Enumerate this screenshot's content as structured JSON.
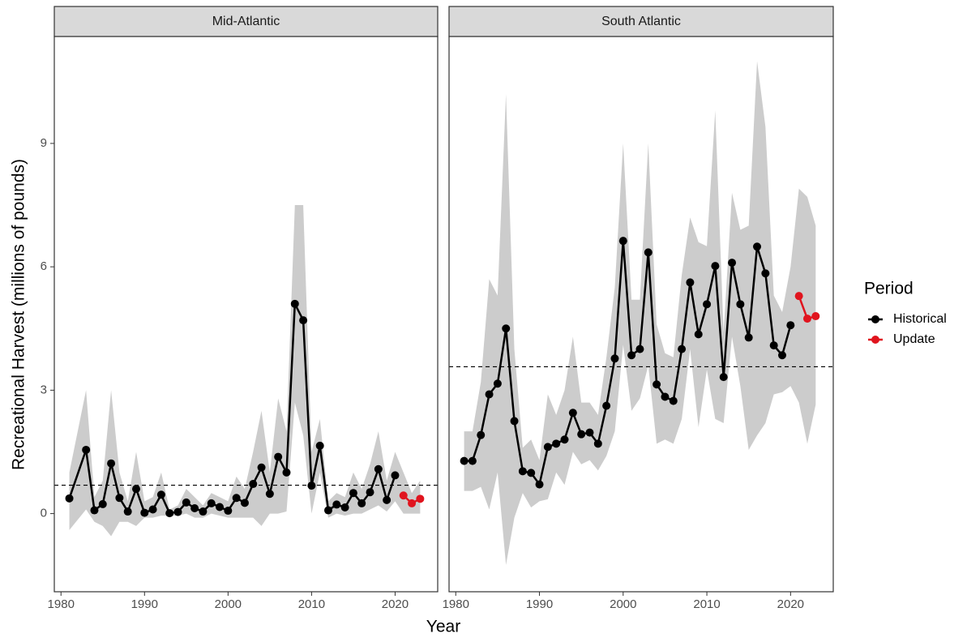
{
  "chart_data": {
    "type": "facet",
    "x_label": "Year",
    "y_label": "Recreational Harvest (millions of pounds)",
    "legend_title": "Period",
    "panels": [
      {
        "type": "line",
        "title": "Mid-Atlantic",
        "x": [
          1981,
          1983,
          1984,
          1985,
          1986,
          1987,
          1988,
          1989,
          1990,
          1991,
          1992,
          1993,
          1994,
          1995,
          1996,
          1997,
          1998,
          1999,
          2000,
          2001,
          2002,
          2003,
          2004,
          2005,
          2006,
          2007,
          2008,
          2009,
          2010,
          2011,
          2012,
          2013,
          2014,
          2015,
          2016,
          2017,
          2018,
          2019,
          2020,
          2021,
          2022,
          2023
        ],
        "series": [
          {
            "name": "Historical",
            "color": "#000000",
            "values": [
              0.37,
              1.55,
              0.08,
              0.23,
              1.22,
              0.38,
              0.05,
              0.6,
              0.02,
              0.1,
              0.46,
              0.01,
              0.04,
              0.27,
              0.13,
              0.05,
              0.25,
              0.16,
              0.07,
              0.38,
              0.26,
              0.72,
              1.12,
              0.48,
              1.38,
              1.0,
              5.1,
              4.7,
              0.68,
              1.65,
              0.08,
              0.22,
              0.15,
              0.5,
              0.25,
              0.52,
              1.08,
              0.33,
              0.93,
              null,
              null,
              null
            ]
          },
          {
            "name": "Update",
            "color": "#e0141e",
            "values": [
              null,
              null,
              null,
              null,
              null,
              null,
              null,
              null,
              null,
              null,
              null,
              null,
              null,
              null,
              null,
              null,
              null,
              null,
              null,
              null,
              null,
              null,
              null,
              null,
              null,
              null,
              null,
              null,
              null,
              null,
              null,
              null,
              null,
              null,
              null,
              null,
              null,
              null,
              null,
              0.44,
              0.25,
              0.36
            ]
          }
        ],
        "upper": [
          1.0,
          3.0,
          0.4,
          0.8,
          3.0,
          1.0,
          0.3,
          1.5,
          0.3,
          0.4,
          1.0,
          0.1,
          0.2,
          0.6,
          0.4,
          0.2,
          0.5,
          0.4,
          0.3,
          0.9,
          0.6,
          1.5,
          2.5,
          1.0,
          2.8,
          2.0,
          7.5,
          7.5,
          1.5,
          2.3,
          0.3,
          0.5,
          0.4,
          1.0,
          0.6,
          1.2,
          2.0,
          0.8,
          1.5,
          1.0,
          0.5,
          0.8
        ],
        "lower": [
          -0.4,
          0.1,
          -0.2,
          -0.3,
          -0.55,
          -0.2,
          -0.2,
          -0.3,
          -0.1,
          -0.1,
          -0.05,
          -0.05,
          -0.05,
          0,
          -0.1,
          -0.1,
          0,
          -0.05,
          -0.1,
          -0.1,
          -0.1,
          -0.1,
          -0.3,
          0,
          0,
          0.05,
          2.7,
          1.9,
          0,
          1.0,
          -0.1,
          0,
          -0.05,
          0,
          0,
          0.1,
          0.2,
          0.05,
          0.3,
          0,
          0,
          0
        ],
        "band_color": "#cccccc",
        "reference": 0.69,
        "xlim": [
          1979.2,
          2025.1
        ],
        "xticks": [
          1980,
          1990,
          2000,
          2010,
          2020
        ],
        "ylim": [
          -1.9,
          11.6
        ],
        "yticks": [
          0,
          3,
          6,
          9
        ]
      },
      {
        "type": "line",
        "title": "South Atlantic",
        "x": [
          1981,
          1982,
          1983,
          1984,
          1985,
          1986,
          1987,
          1988,
          1989,
          1990,
          1991,
          1992,
          1993,
          1994,
          1995,
          1996,
          1997,
          1998,
          1999,
          2000,
          2001,
          2002,
          2003,
          2004,
          2005,
          2006,
          2007,
          2008,
          2009,
          2010,
          2011,
          2012,
          2013,
          2014,
          2015,
          2016,
          2017,
          2018,
          2019,
          2020,
          2021,
          2022,
          2023
        ],
        "series": [
          {
            "name": "Historical",
            "color": "#000000",
            "values": [
              1.28,
              1.28,
              1.91,
              2.9,
              3.16,
              4.5,
              2.25,
              1.03,
              0.99,
              0.71,
              1.62,
              1.7,
              1.8,
              2.45,
              1.93,
              1.97,
              1.7,
              2.62,
              3.77,
              6.63,
              3.85,
              4.0,
              6.35,
              3.14,
              2.84,
              2.74,
              4.0,
              5.62,
              4.36,
              5.09,
              6.02,
              3.32,
              6.1,
              5.09,
              4.28,
              6.49,
              5.84,
              4.09,
              3.85,
              4.58,
              null,
              null,
              null
            ]
          },
          {
            "name": "Update",
            "color": "#e0141e",
            "values": [
              null,
              null,
              null,
              null,
              null,
              null,
              null,
              null,
              null,
              null,
              null,
              null,
              null,
              null,
              null,
              null,
              null,
              null,
              null,
              null,
              null,
              null,
              null,
              null,
              null,
              null,
              null,
              null,
              null,
              null,
              null,
              null,
              null,
              null,
              null,
              null,
              null,
              null,
              null,
              null,
              5.29,
              4.74,
              4.8
            ]
          }
        ],
        "upper": [
          2.0,
          2.0,
          3.2,
          5.7,
          5.3,
          10.2,
          4.0,
          1.6,
          1.8,
          1.3,
          2.9,
          2.4,
          3.0,
          4.3,
          2.7,
          2.7,
          2.4,
          3.8,
          5.5,
          9.0,
          5.2,
          5.2,
          9.0,
          4.6,
          3.9,
          3.8,
          5.8,
          7.2,
          6.6,
          6.5,
          9.8,
          4.4,
          7.8,
          6.9,
          7.0,
          11.0,
          9.4,
          5.3,
          4.9,
          6.0,
          7.9,
          7.7,
          7.0
        ],
        "lower": [
          0.55,
          0.55,
          0.65,
          0.1,
          1.0,
          -1.25,
          -0.1,
          0.5,
          0.15,
          0.3,
          0.35,
          1.0,
          0.7,
          1.5,
          1.2,
          1.3,
          1.05,
          1.4,
          2.0,
          4.1,
          2.5,
          2.8,
          3.6,
          1.7,
          1.8,
          1.7,
          2.3,
          4.0,
          2.1,
          3.5,
          2.3,
          2.2,
          4.3,
          3.1,
          1.55,
          1.9,
          2.2,
          2.9,
          2.95,
          3.1,
          2.7,
          1.7,
          2.65
        ],
        "band_color": "#cccccc",
        "reference": 3.57,
        "xlim": [
          1979.2,
          2025.1
        ],
        "xticks": [
          1980,
          1990,
          2000,
          2010,
          2020
        ],
        "ylim": [
          -1.9,
          11.6
        ],
        "yticks": [
          0,
          3,
          6,
          9
        ]
      }
    ]
  }
}
